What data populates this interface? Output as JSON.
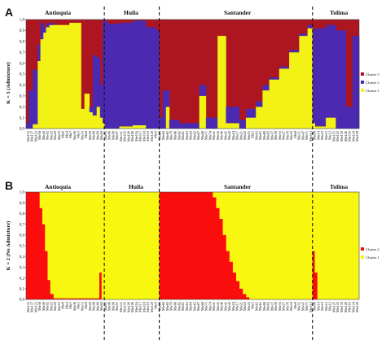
{
  "colors": {
    "red": "#ad1620",
    "blue": "#4b29b0",
    "yellow": "#f2f215",
    "red_b": "#fb0d0d",
    "yellow_b": "#f7f710",
    "divider": "#111111"
  },
  "chart_data": [
    {
      "type": "bar",
      "subtype": "stacked-100-admixture",
      "panel_label": "A",
      "ylabel": "K = 3 (Admixture)",
      "ylim": [
        0,
        1
      ],
      "yticks": [
        "0,0",
        "0,1",
        "0,2",
        "0,3",
        "0,4",
        "0,5",
        "0,6",
        "0,7",
        "0,8",
        "0,9",
        "1,0"
      ],
      "regions": [
        {
          "name": "Antioquia",
          "start": 0,
          "end": 0.235
        },
        {
          "name": "Huila",
          "start": 0.235,
          "end": 0.4
        },
        {
          "name": "Santander",
          "start": 0.4,
          "end": 0.86
        },
        {
          "name": "Tolima",
          "start": 0.86,
          "end": 1.0
        }
      ],
      "xtick_labels": [
        "Mte135",
        "Mte137",
        "Mte123",
        "Mte38",
        "Mte40",
        "Mte92",
        "Mte23",
        "Mte29",
        "Mte19",
        "Mte6",
        "Mte4",
        "Mte7",
        "Mte36",
        "Mte3",
        "Mte53",
        "Mte8",
        "Mte00",
        "Mte98",
        "Mte99",
        "Mte94",
        "Mte95",
        "Mte96",
        "Mte90",
        "Mte97",
        "Mte111",
        "Mte105",
        "Mte100",
        "Mte106",
        "Mte116",
        "Mte117",
        "Mte118",
        "Mte110",
        "Mte120",
        "Mte0",
        "Mte28",
        "Mte84",
        "Mte85",
        "Mte79",
        "Mte86",
        "Mte82",
        "Mte61",
        "Mte63",
        "Mte64",
        "Mte62",
        "Mte67",
        "Mte68",
        "Mte71",
        "Mte74",
        "Mte41",
        "Mte45",
        "Mte46",
        "Mte41",
        "Mte42",
        "Mte24",
        "Mte17",
        "Mte21",
        "Mte22",
        "Mte25",
        "Mte5",
        "Mte63",
        "Mte61",
        "Mte88",
        "Mte83",
        "Mte37",
        "Mte39",
        "Mte33",
        "Mte27",
        "Mte76",
        "Mte52",
        "Mte8",
        "Mte51",
        "Mte47",
        "Mte71",
        "Mte113",
        "Mte98",
        "Mte14",
        "Mte10",
        "Mte12",
        "Mte12",
        "Mte125",
        "Mte122",
        "Mte130",
        "Mte126",
        "Mte116",
        "Mte124",
        "Mte128"
      ],
      "series": [
        {
          "name": "Cluster 3",
          "color": "red"
        },
        {
          "name": "Cluster 2",
          "color": "blue"
        },
        {
          "name": "Cluster 1",
          "color": "yellow"
        }
      ],
      "segments": [
        {
          "from": 0.0,
          "to": 0.008,
          "cluster1": 0.0,
          "cluster2": 0.05
        },
        {
          "from": 0.008,
          "to": 0.02,
          "cluster1": 0.0,
          "cluster2": 0.35
        },
        {
          "from": 0.02,
          "to": 0.035,
          "cluster1": 0.04,
          "cluster2": 0.5
        },
        {
          "from": 0.035,
          "to": 0.043,
          "cluster1": 0.62,
          "cluster2": 0.15
        },
        {
          "from": 0.043,
          "to": 0.052,
          "cluster1": 0.82,
          "cluster2": 0.15
        },
        {
          "from": 0.052,
          "to": 0.06,
          "cluster1": 0.88,
          "cluster2": 0.05
        },
        {
          "from": 0.06,
          "to": 0.07,
          "cluster1": 0.93,
          "cluster2": 0.03
        },
        {
          "from": 0.07,
          "to": 0.085,
          "cluster1": 0.95,
          "cluster2": 0.02
        },
        {
          "from": 0.085,
          "to": 0.13,
          "cluster1": 0.95,
          "cluster2": 0.0
        },
        {
          "from": 0.13,
          "to": 0.165,
          "cluster1": 0.97,
          "cluster2": 0.0
        },
        {
          "from": 0.165,
          "to": 0.175,
          "cluster1": 0.18,
          "cluster2": 0.0
        },
        {
          "from": 0.175,
          "to": 0.19,
          "cluster1": 0.32,
          "cluster2": 0.0
        },
        {
          "from": 0.19,
          "to": 0.2,
          "cluster1": 0.15,
          "cluster2": 0.05
        },
        {
          "from": 0.2,
          "to": 0.212,
          "cluster1": 0.12,
          "cluster2": 0.55
        },
        {
          "from": 0.212,
          "to": 0.222,
          "cluster1": 0.2,
          "cluster2": 0.45
        },
        {
          "from": 0.222,
          "to": 0.23,
          "cluster1": 0.1,
          "cluster2": 0.3
        },
        {
          "from": 0.23,
          "to": 0.236,
          "cluster1": 0.05,
          "cluster2": 0.95
        },
        {
          "from": 0.236,
          "to": 0.245,
          "cluster1": 0.0,
          "cluster2": 0.98
        },
        {
          "from": 0.245,
          "to": 0.28,
          "cluster1": 0.0,
          "cluster2": 0.96
        },
        {
          "from": 0.28,
          "to": 0.32,
          "cluster1": 0.02,
          "cluster2": 0.95
        },
        {
          "from": 0.32,
          "to": 0.36,
          "cluster1": 0.03,
          "cluster2": 0.96
        },
        {
          "from": 0.36,
          "to": 0.39,
          "cluster1": 0.0,
          "cluster2": 0.93
        },
        {
          "from": 0.39,
          "to": 0.4,
          "cluster1": 0.0,
          "cluster2": 0.9
        },
        {
          "from": 0.4,
          "to": 0.41,
          "cluster1": 0.0,
          "cluster2": 0.1
        },
        {
          "from": 0.41,
          "to": 0.42,
          "cluster1": 0.0,
          "cluster2": 0.35
        },
        {
          "from": 0.42,
          "to": 0.43,
          "cluster1": 0.2,
          "cluster2": 0.15
        },
        {
          "from": 0.43,
          "to": 0.46,
          "cluster1": 0.0,
          "cluster2": 0.08
        },
        {
          "from": 0.46,
          "to": 0.52,
          "cluster1": 0.0,
          "cluster2": 0.05
        },
        {
          "from": 0.52,
          "to": 0.54,
          "cluster1": 0.3,
          "cluster2": 0.1
        },
        {
          "from": 0.54,
          "to": 0.575,
          "cluster1": 0.0,
          "cluster2": 0.1
        },
        {
          "from": 0.575,
          "to": 0.6,
          "cluster1": 0.85,
          "cluster2": 0.0
        },
        {
          "from": 0.6,
          "to": 0.64,
          "cluster1": 0.05,
          "cluster2": 0.15
        },
        {
          "from": 0.64,
          "to": 0.66,
          "cluster1": 0.0,
          "cluster2": 0.08
        },
        {
          "from": 0.66,
          "to": 0.69,
          "cluster1": 0.1,
          "cluster2": 0.08
        },
        {
          "from": 0.69,
          "to": 0.71,
          "cluster1": 0.2,
          "cluster2": 0.05
        },
        {
          "from": 0.71,
          "to": 0.73,
          "cluster1": 0.35,
          "cluster2": 0.05
        },
        {
          "from": 0.73,
          "to": 0.76,
          "cluster1": 0.45,
          "cluster2": 0.02
        },
        {
          "from": 0.76,
          "to": 0.79,
          "cluster1": 0.55,
          "cluster2": 0.02
        },
        {
          "from": 0.79,
          "to": 0.82,
          "cluster1": 0.7,
          "cluster2": 0.02
        },
        {
          "from": 0.82,
          "to": 0.845,
          "cluster1": 0.85,
          "cluster2": 0.02
        },
        {
          "from": 0.845,
          "to": 0.86,
          "cluster1": 0.92,
          "cluster2": 0.03
        },
        {
          "from": 0.86,
          "to": 0.868,
          "cluster1": 0.05,
          "cluster2": 0.85
        },
        {
          "from": 0.868,
          "to": 0.9,
          "cluster1": 0.02,
          "cluster2": 0.9
        },
        {
          "from": 0.9,
          "to": 0.93,
          "cluster1": 0.1,
          "cluster2": 0.85
        },
        {
          "from": 0.93,
          "to": 0.96,
          "cluster1": 0.0,
          "cluster2": 0.9
        },
        {
          "from": 0.96,
          "to": 0.98,
          "cluster1": 0.0,
          "cluster2": 0.2
        },
        {
          "from": 0.98,
          "to": 1.0,
          "cluster1": 0.0,
          "cluster2": 0.85
        }
      ]
    },
    {
      "type": "bar",
      "subtype": "stacked-100-no-admixture",
      "panel_label": "B",
      "ylabel": "K = 2 (No Admixture)",
      "ylim": [
        0,
        1
      ],
      "yticks": [
        "0,0",
        "0,1",
        "0,2",
        "0,3",
        "0,4",
        "0,5",
        "0,6",
        "0,7",
        "0,8",
        "0,9",
        "1,0"
      ],
      "regions": [
        {
          "name": "Antioquia",
          "start": 0,
          "end": 0.235
        },
        {
          "name": "Huila",
          "start": 0.235,
          "end": 0.4
        },
        {
          "name": "Santander",
          "start": 0.4,
          "end": 0.86
        },
        {
          "name": "Tolima",
          "start": 0.86,
          "end": 1.0
        }
      ],
      "xtick_labels": [
        "Mte135",
        "Mte137",
        "Mte123",
        "Mte38",
        "Mte40",
        "Mte92",
        "Mte23",
        "Mte29",
        "Mte19",
        "Mte6",
        "Mte4",
        "Mte7",
        "Mte36",
        "Mte3",
        "Mte53",
        "Mte8",
        "Mte00",
        "Mte98",
        "Mte99",
        "Mte94",
        "Mte95",
        "Mte96",
        "Mte90",
        "Mte97",
        "Mte111",
        "Mte105",
        "Mte100",
        "Mte106",
        "Mte116",
        "Mte117",
        "Mte118",
        "Mte110",
        "Mte120",
        "Mte0",
        "Mte28",
        "Mte84",
        "Mte85",
        "Mte79",
        "Mte86",
        "Mte82",
        "Mte61",
        "Mte63",
        "Mte64",
        "Mte62",
        "Mte67",
        "Mte68",
        "Mte71",
        "Mte74",
        "Mte41",
        "Mte45",
        "Mte46",
        "Mte41",
        "Mte42",
        "Mte24",
        "Mte17",
        "Mte21",
        "Mte22",
        "Mte25",
        "Mte5",
        "Mte63",
        "Mte61",
        "Mte88",
        "Mte83",
        "Mte37",
        "Mte39",
        "Mte33",
        "Mte27",
        "Mte76",
        "Mte52",
        "Mte8",
        "Mte51",
        "Mte47",
        "Mte71",
        "Mte113",
        "Mte98",
        "Mte14",
        "Mte10",
        "Mte12",
        "Mte12",
        "Mte125",
        "Mte122",
        "Mte130",
        "Mte126",
        "Mte116",
        "Mte124",
        "Mte128"
      ],
      "series": [
        {
          "name": "Cluster 2",
          "color": "red_b"
        },
        {
          "name": "Cluster 1",
          "color": "yellow_b"
        }
      ],
      "segments": [
        {
          "from": 0.0,
          "to": 0.04,
          "cluster1": 0.0
        },
        {
          "from": 0.04,
          "to": 0.048,
          "cluster1": 0.15
        },
        {
          "from": 0.048,
          "to": 0.056,
          "cluster1": 0.3
        },
        {
          "from": 0.056,
          "to": 0.064,
          "cluster1": 0.55
        },
        {
          "from": 0.064,
          "to": 0.072,
          "cluster1": 0.82
        },
        {
          "from": 0.072,
          "to": 0.082,
          "cluster1": 0.95
        },
        {
          "from": 0.082,
          "to": 0.22,
          "cluster1": 0.99
        },
        {
          "from": 0.22,
          "to": 0.226,
          "cluster1": 0.75
        },
        {
          "from": 0.226,
          "to": 0.4,
          "cluster1": 1.0
        },
        {
          "from": 0.4,
          "to": 0.56,
          "cluster1": 0.0
        },
        {
          "from": 0.56,
          "to": 0.57,
          "cluster1": 0.05
        },
        {
          "from": 0.57,
          "to": 0.58,
          "cluster1": 0.15
        },
        {
          "from": 0.58,
          "to": 0.59,
          "cluster1": 0.25
        },
        {
          "from": 0.59,
          "to": 0.6,
          "cluster1": 0.4
        },
        {
          "from": 0.6,
          "to": 0.61,
          "cluster1": 0.55
        },
        {
          "from": 0.61,
          "to": 0.62,
          "cluster1": 0.65
        },
        {
          "from": 0.62,
          "to": 0.63,
          "cluster1": 0.75
        },
        {
          "from": 0.63,
          "to": 0.64,
          "cluster1": 0.83
        },
        {
          "from": 0.64,
          "to": 0.65,
          "cluster1": 0.9
        },
        {
          "from": 0.65,
          "to": 0.66,
          "cluster1": 0.95
        },
        {
          "from": 0.66,
          "to": 0.67,
          "cluster1": 0.98
        },
        {
          "from": 0.67,
          "to": 0.86,
          "cluster1": 1.0
        },
        {
          "from": 0.86,
          "to": 0.866,
          "cluster1": 0.55
        },
        {
          "from": 0.866,
          "to": 0.874,
          "cluster1": 0.75
        },
        {
          "from": 0.874,
          "to": 1.0,
          "cluster1": 1.0
        }
      ]
    }
  ]
}
